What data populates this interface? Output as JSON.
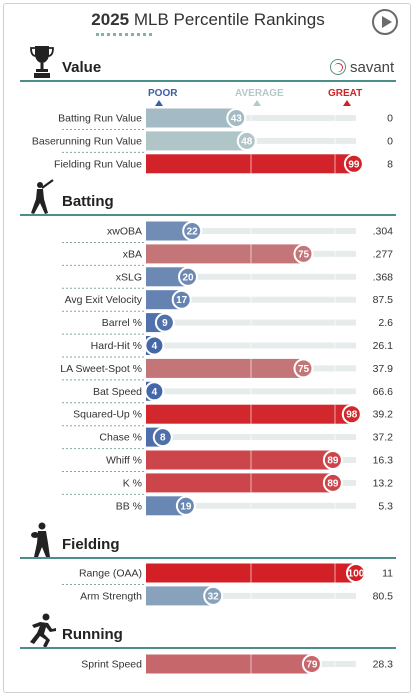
{
  "title": {
    "year": "2025",
    "rest": "MLB Percentile Rankings"
  },
  "logo_text": "savant",
  "scale": {
    "poor": "POOR",
    "average": "AVERAGE",
    "great": "GREAT",
    "poor_color": "#3b5ea6",
    "average_color": "#b5c9c9",
    "great_color": "#d32027"
  },
  "chart_data": {
    "type": "bar",
    "xlim": [
      0,
      100
    ],
    "sections": [
      {
        "title": "Value",
        "icon": "trophy-icon",
        "rows": [
          {
            "label": "Batting Run Value",
            "percentile": 43,
            "value": "0"
          },
          {
            "label": "Baserunning Run Value",
            "percentile": 48,
            "value": "0"
          },
          {
            "label": "Fielding Run Value",
            "percentile": 99,
            "value": "8"
          }
        ]
      },
      {
        "title": "Batting",
        "icon": "batter-icon",
        "rows": [
          {
            "label": "xwOBA",
            "percentile": 22,
            "value": ".304"
          },
          {
            "label": "xBA",
            "percentile": 75,
            "value": ".277"
          },
          {
            "label": "xSLG",
            "percentile": 20,
            "value": ".368"
          },
          {
            "label": "Avg Exit Velocity",
            "percentile": 17,
            "value": "87.5"
          },
          {
            "label": "Barrel %",
            "percentile": 9,
            "value": "2.6"
          },
          {
            "label": "Hard-Hit %",
            "percentile": 4,
            "value": "26.1"
          },
          {
            "label": "LA Sweet-Spot %",
            "percentile": 75,
            "value": "37.9"
          },
          {
            "label": "Bat Speed",
            "percentile": 4,
            "value": "66.6"
          },
          {
            "label": "Squared-Up %",
            "percentile": 98,
            "value": "39.2"
          },
          {
            "label": "Chase %",
            "percentile": 8,
            "value": "37.2"
          },
          {
            "label": "Whiff %",
            "percentile": 89,
            "value": "16.3"
          },
          {
            "label": "K %",
            "percentile": 89,
            "value": "13.2"
          },
          {
            "label": "BB %",
            "percentile": 19,
            "value": "5.3"
          }
        ]
      },
      {
        "title": "Fielding",
        "icon": "fielder-icon",
        "rows": [
          {
            "label": "Range (OAA)",
            "percentile": 100,
            "value": "11"
          },
          {
            "label": "Arm Strength",
            "percentile": 32,
            "value": "80.5"
          }
        ]
      },
      {
        "title": "Running",
        "icon": "runner-icon",
        "rows": [
          {
            "label": "Sprint Speed",
            "percentile": 79,
            "value": "28.3"
          }
        ]
      }
    ]
  }
}
